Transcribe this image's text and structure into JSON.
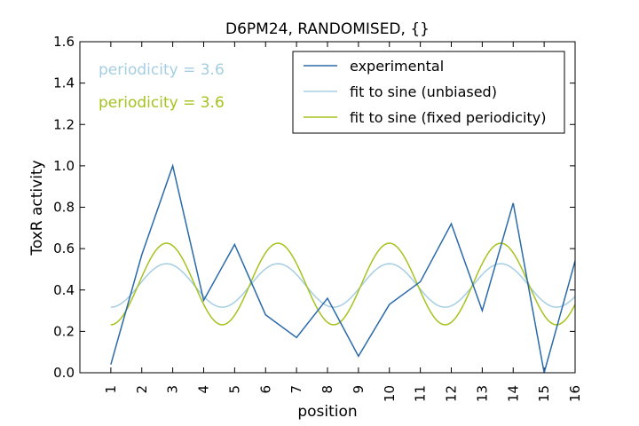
{
  "chart_data": {
    "type": "line",
    "title": "D6PM24, RANDOMISED, {}",
    "xlabel": "position",
    "ylabel": "ToxR activity",
    "xlim": [
      0,
      16
    ],
    "ylim": [
      0.0,
      1.6
    ],
    "x_ticks": [
      1,
      2,
      3,
      4,
      5,
      6,
      7,
      8,
      9,
      10,
      11,
      12,
      13,
      14,
      15,
      16
    ],
    "y_ticks": [
      "0.0",
      "0.2",
      "0.4",
      "0.6",
      "0.8",
      "1.0",
      "1.2",
      "1.4",
      "1.6"
    ],
    "grid": false,
    "legend_position": "top-right",
    "annotations": [
      {
        "text": "periodicity = 3.6",
        "color": "#a6cee3"
      },
      {
        "text": "periodicity = 3.6",
        "color": "#a6c21e"
      }
    ],
    "series": [
      {
        "name": "experimental",
        "kind": "data",
        "color": "#2b6aa8",
        "x": [
          1,
          2,
          3,
          4,
          5,
          6,
          7,
          8,
          9,
          10,
          11,
          12,
          13,
          14,
          15,
          16
        ],
        "y": [
          0.04,
          0.57,
          1.0,
          0.35,
          0.62,
          0.28,
          0.17,
          0.36,
          0.08,
          0.33,
          0.44,
          0.72,
          0.3,
          0.82,
          0.0,
          0.54
        ]
      },
      {
        "name": "fit to sine (unbiased)",
        "kind": "sine",
        "color": "#a6cee3",
        "mean": 0.422,
        "amplitude": 0.105,
        "period": 3.6,
        "peak_x": 2.8,
        "x_range": [
          1,
          16
        ]
      },
      {
        "name": "fit to sine (fixed periodicity)",
        "kind": "sine",
        "color": "#a6c21e",
        "mean": 0.429,
        "amplitude": 0.197,
        "period": 3.6,
        "peak_x": 2.8,
        "x_range": [
          1,
          16
        ]
      }
    ]
  }
}
